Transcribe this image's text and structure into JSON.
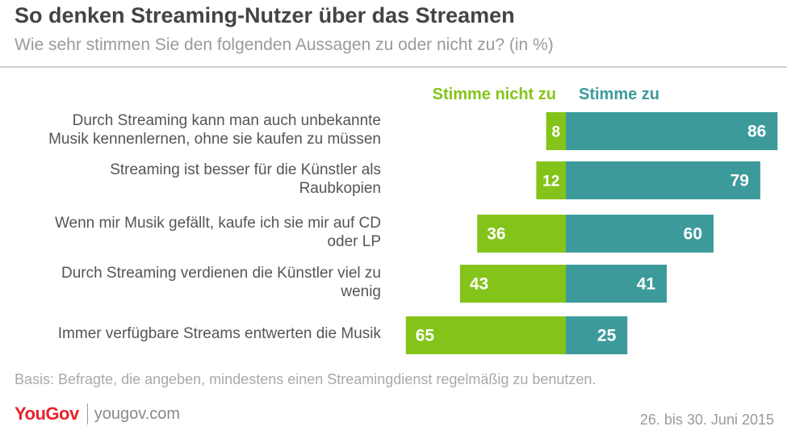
{
  "header": {
    "title": "So denken Streaming-Nutzer über das Streamen",
    "subtitle": "Wie sehr stimmen Sie den folgenden Aussagen zu oder nicht zu? (in %)"
  },
  "chart_data": {
    "type": "bar",
    "orientation": "horizontal-diverging",
    "categories": [
      [
        "Durch Streaming kann man auch unbekannte",
        "Musik kennenlernen, ohne sie kaufen zu müssen"
      ],
      [
        "Streaming ist besser für die Künstler als",
        "Raubkopien"
      ],
      [
        "Wenn mir Musik gefällt, kaufe ich sie mir auf CD",
        "oder LP"
      ],
      [
        "Durch Streaming verdienen die Künstler viel zu",
        "wenig"
      ],
      [
        "Immer verfügbare Streams entwerten die Musik"
      ]
    ],
    "series": [
      {
        "name": "Stimme nicht zu",
        "color": "#84c41a",
        "values": [
          8,
          12,
          36,
          43,
          65
        ]
      },
      {
        "name": "Stimme zu",
        "color": "#3d9a9b",
        "values": [
          86,
          79,
          60,
          41,
          25
        ]
      }
    ],
    "legend": "top"
  },
  "footer": {
    "basis": "Basis: Befragte, die angeben, mindestens einen Streamingdienst regelmäßig zu benutzen.",
    "brand": "YouGov",
    "url": "yougov.com",
    "date": "26. bis 30. Juni 2015"
  }
}
